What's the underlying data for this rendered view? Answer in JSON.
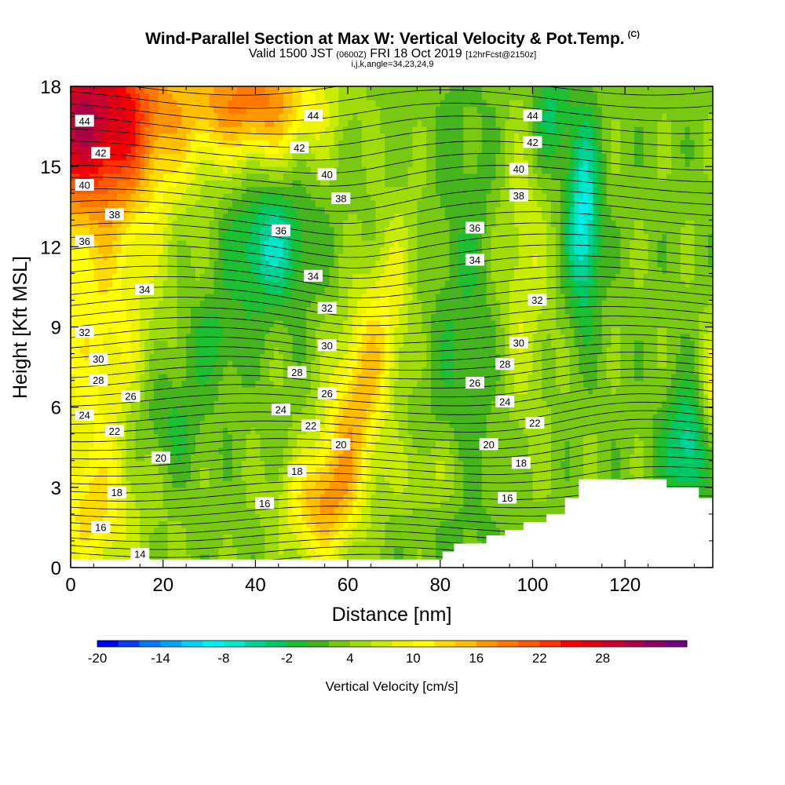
{
  "header": {
    "title": "Wind-Parallel Section at Max W: Vertical Velocity & Pot.Temp.",
    "copyright": "(C)",
    "valid_prefix": "Valid 1500 JST",
    "valid_utc": "(0600Z)",
    "valid_date": "FRI 18 Oct 2019",
    "forecast": "[12hrFcst@2150z]",
    "indices": "i,j,k,angle=34,23,24,9"
  },
  "colors": {
    "frame": "#000000",
    "terrain": "#ffffff",
    "contour": "#000000"
  },
  "chart_data": {
    "type": "heatmap",
    "xlabel": "Distance [nm]",
    "ylabel": "Height [Kft MSL]",
    "xlim": [
      0,
      139
    ],
    "ylim": [
      0,
      18
    ],
    "x_ticks": [
      0,
      20,
      40,
      60,
      80,
      100,
      120
    ],
    "y_ticks": [
      0,
      3,
      6,
      9,
      12,
      15,
      18
    ],
    "colorbar": {
      "label": "Vertical Velocity [cm/s]",
      "tick_labels": [
        "-20",
        "-14",
        "-8",
        "-2",
        "4",
        "10",
        "16",
        "22",
        "28"
      ],
      "colors": [
        "#0000ee",
        "#0a3cf0",
        "#0a78f0",
        "#00a5f5",
        "#00d2f5",
        "#00f0f0",
        "#00e6c8",
        "#00d296",
        "#00c864",
        "#1ebe32",
        "#46b41e",
        "#78c814",
        "#a0dc0a",
        "#c8ec00",
        "#eef400",
        "#ffff00",
        "#ffdc00",
        "#ffbe00",
        "#ff9600",
        "#ff7800",
        "#ff5a00",
        "#ff3200",
        "#f50000",
        "#dc0014",
        "#c8002d",
        "#aa0046",
        "#8c0064",
        "#6e0082"
      ]
    },
    "theta_contours": {
      "label": "Potential Temperature",
      "levels": [
        14,
        16,
        18,
        20,
        22,
        24,
        26,
        28,
        30,
        32,
        34,
        36,
        38,
        40,
        42,
        44
      ]
    },
    "contour_labels": [
      {
        "v": "44",
        "x": 3.0,
        "y": 16.7
      },
      {
        "v": "42",
        "x": 6.5,
        "y": 15.5
      },
      {
        "v": "40",
        "x": 3.0,
        "y": 14.3
      },
      {
        "v": "38",
        "x": 9.5,
        "y": 13.2
      },
      {
        "v": "36",
        "x": 3.0,
        "y": 12.2
      },
      {
        "v": "34",
        "x": 16.0,
        "y": 10.4
      },
      {
        "v": "32",
        "x": 3.0,
        "y": 8.8
      },
      {
        "v": "30",
        "x": 6.0,
        "y": 7.8
      },
      {
        "v": "28",
        "x": 6.0,
        "y": 7.0
      },
      {
        "v": "26",
        "x": 13.0,
        "y": 6.4
      },
      {
        "v": "24",
        "x": 3.0,
        "y": 5.7
      },
      {
        "v": "22",
        "x": 9.5,
        "y": 5.1
      },
      {
        "v": "20",
        "x": 19.5,
        "y": 4.1
      },
      {
        "v": "18",
        "x": 10.0,
        "y": 2.8
      },
      {
        "v": "16",
        "x": 6.5,
        "y": 1.5
      },
      {
        "v": "14",
        "x": 15.0,
        "y": 0.5
      },
      {
        "v": "44",
        "x": 52.5,
        "y": 16.9
      },
      {
        "v": "42",
        "x": 49.5,
        "y": 15.7
      },
      {
        "v": "40",
        "x": 55.5,
        "y": 14.7
      },
      {
        "v": "38",
        "x": 58.5,
        "y": 13.8
      },
      {
        "v": "36",
        "x": 45.5,
        "y": 12.6
      },
      {
        "v": "34",
        "x": 52.5,
        "y": 10.9
      },
      {
        "v": "32",
        "x": 55.5,
        "y": 9.7
      },
      {
        "v": "30",
        "x": 55.5,
        "y": 8.3
      },
      {
        "v": "28",
        "x": 49.0,
        "y": 7.3
      },
      {
        "v": "26",
        "x": 55.5,
        "y": 6.5
      },
      {
        "v": "24",
        "x": 45.5,
        "y": 5.9
      },
      {
        "v": "22",
        "x": 52.0,
        "y": 5.3
      },
      {
        "v": "20",
        "x": 58.5,
        "y": 4.6
      },
      {
        "v": "18",
        "x": 49.0,
        "y": 3.6
      },
      {
        "v": "16",
        "x": 42.0,
        "y": 2.4
      },
      {
        "v": "44",
        "x": 100.0,
        "y": 16.9
      },
      {
        "v": "42",
        "x": 100.0,
        "y": 15.9
      },
      {
        "v": "40",
        "x": 97.0,
        "y": 14.9
      },
      {
        "v": "38",
        "x": 97.0,
        "y": 13.9
      },
      {
        "v": "36",
        "x": 87.5,
        "y": 12.7
      },
      {
        "v": "34",
        "x": 87.5,
        "y": 11.5
      },
      {
        "v": "32",
        "x": 101.0,
        "y": 10.0
      },
      {
        "v": "30",
        "x": 97.0,
        "y": 8.4
      },
      {
        "v": "28",
        "x": 94.0,
        "y": 7.6
      },
      {
        "v": "26",
        "x": 87.5,
        "y": 6.9
      },
      {
        "v": "24",
        "x": 94.0,
        "y": 6.2
      },
      {
        "v": "22",
        "x": 100.5,
        "y": 5.4
      },
      {
        "v": "20",
        "x": 90.5,
        "y": 4.6
      },
      {
        "v": "18",
        "x": 97.5,
        "y": 3.9
      },
      {
        "v": "16",
        "x": 94.5,
        "y": 2.6
      }
    ],
    "terrain_profile": [
      [
        0,
        0.3
      ],
      [
        80.5,
        0.3
      ],
      [
        80.5,
        0.6
      ],
      [
        83.0,
        0.6
      ],
      [
        83.0,
        0.9
      ],
      [
        90.0,
        0.9
      ],
      [
        90.0,
        1.2
      ],
      [
        94.0,
        1.2
      ],
      [
        94.0,
        1.4
      ],
      [
        98.0,
        1.4
      ],
      [
        98.0,
        1.7
      ],
      [
        103.0,
        1.7
      ],
      [
        103.0,
        2.0
      ],
      [
        107.0,
        2.0
      ],
      [
        107.0,
        2.6
      ],
      [
        110.0,
        2.6
      ],
      [
        110.0,
        3.3
      ],
      [
        129.0,
        3.3
      ],
      [
        129.0,
        3.0
      ],
      [
        136.0,
        3.0
      ],
      [
        136.0,
        2.6
      ],
      [
        139,
        2.6
      ]
    ]
  }
}
